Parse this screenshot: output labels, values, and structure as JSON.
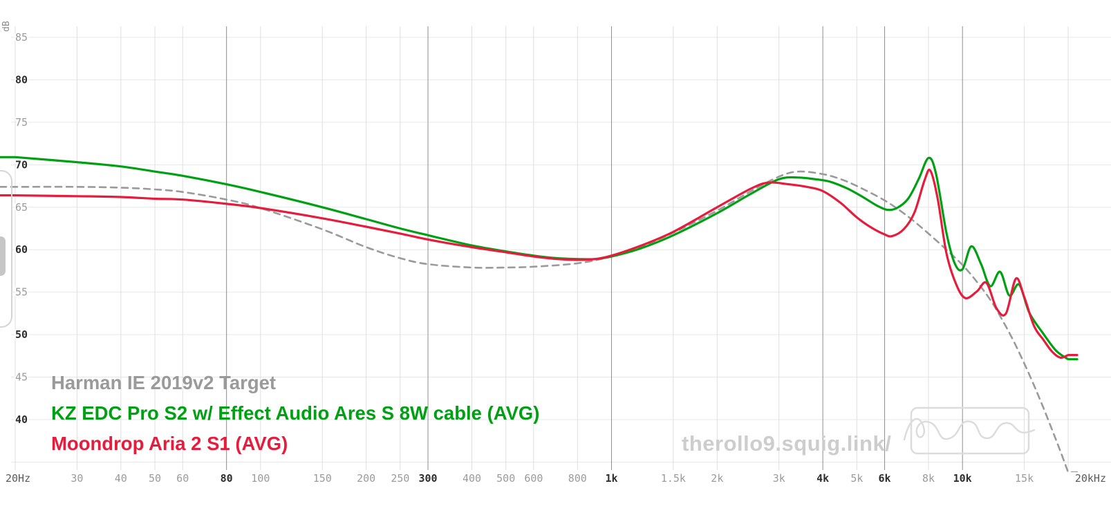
{
  "watermark": {
    "text": "therollo9.squig.link/",
    "color": "#cdcdcd"
  },
  "chart_data": {
    "type": "line",
    "title": "",
    "xlabel": "",
    "ylabel": "dB",
    "x_scale": "log",
    "xlim": [
      20,
      20000
    ],
    "ylim": [
      40,
      85
    ],
    "grid": true,
    "legend_position": "bottom-left",
    "colors": {
      "grid_h": "#e7e7e7",
      "grid_minor": "#dfdfdf",
      "grid_major": "#8e8e8e"
    },
    "extra_h_gridlines": [
      35
    ],
    "x_ticks": [
      {
        "f": 20,
        "label": "20Hz",
        "major": false,
        "dark": true
      },
      {
        "f": 30,
        "label": "30",
        "major": false
      },
      {
        "f": 40,
        "label": "40",
        "major": false
      },
      {
        "f": 50,
        "label": "50",
        "major": false
      },
      {
        "f": 60,
        "label": "60",
        "major": false
      },
      {
        "f": 80,
        "label": "80",
        "major": true
      },
      {
        "f": 100,
        "label": "100",
        "major": false
      },
      {
        "f": 150,
        "label": "150",
        "major": false
      },
      {
        "f": 200,
        "label": "200",
        "major": false
      },
      {
        "f": 250,
        "label": "250",
        "major": false
      },
      {
        "f": 300,
        "label": "300",
        "major": true
      },
      {
        "f": 400,
        "label": "400",
        "major": false
      },
      {
        "f": 500,
        "label": "500",
        "major": false
      },
      {
        "f": 600,
        "label": "600",
        "major": false
      },
      {
        "f": 800,
        "label": "800",
        "major": false
      },
      {
        "f": 1000,
        "label": "1k",
        "major": true
      },
      {
        "f": 1500,
        "label": "1.5k",
        "major": false
      },
      {
        "f": 2000,
        "label": "2k",
        "major": false
      },
      {
        "f": 3000,
        "label": "3k",
        "major": false
      },
      {
        "f": 4000,
        "label": "4k",
        "major": true
      },
      {
        "f": 5000,
        "label": "5k",
        "major": false
      },
      {
        "f": 6000,
        "label": "6k",
        "major": true
      },
      {
        "f": 8000,
        "label": "8k",
        "major": false
      },
      {
        "f": 10000,
        "label": "10k",
        "major": true
      },
      {
        "f": 15000,
        "label": "15k",
        "major": false
      },
      {
        "f": 20000,
        "label": "20kHz",
        "major": false,
        "dark": true
      }
    ],
    "y_ticks": [
      {
        "value": 85,
        "label": "85",
        "major": false
      },
      {
        "value": 80,
        "label": "80",
        "major": true
      },
      {
        "value": 75,
        "label": "75",
        "major": false
      },
      {
        "value": 70,
        "label": "70",
        "major": true
      },
      {
        "value": 65,
        "label": "65",
        "major": false
      },
      {
        "value": 60,
        "label": "60",
        "major": true
      },
      {
        "value": 55,
        "label": "55",
        "major": false
      },
      {
        "value": 50,
        "label": "50",
        "major": true
      },
      {
        "value": 45,
        "label": "45",
        "major": false
      },
      {
        "value": 40,
        "label": "40",
        "major": true
      }
    ],
    "series": [
      {
        "id": "harman-target",
        "name": "Harman IE 2019v2 Target",
        "color": "#9a9a9a",
        "style": "dashed",
        "width": 2.6,
        "points": [
          [
            20,
            67.4
          ],
          [
            30,
            67.4
          ],
          [
            40,
            67.3
          ],
          [
            50,
            67.1
          ],
          [
            60,
            66.8
          ],
          [
            80,
            65.9
          ],
          [
            100,
            64.9
          ],
          [
            150,
            62.4
          ],
          [
            200,
            60.3
          ],
          [
            250,
            59.0
          ],
          [
            300,
            58.3
          ],
          [
            400,
            57.9
          ],
          [
            500,
            57.9
          ],
          [
            600,
            58.0
          ],
          [
            800,
            58.4
          ],
          [
            1000,
            59.2
          ],
          [
            1200,
            60.3
          ],
          [
            1500,
            62.0
          ],
          [
            2000,
            64.6
          ],
          [
            2500,
            66.9
          ],
          [
            3000,
            68.6
          ],
          [
            3400,
            69.2
          ],
          [
            4000,
            68.9
          ],
          [
            4500,
            68.3
          ],
          [
            5000,
            67.5
          ],
          [
            6000,
            65.8
          ],
          [
            7000,
            63.9
          ],
          [
            8000,
            61.9
          ],
          [
            9000,
            60.0
          ],
          [
            10000,
            58.2
          ],
          [
            11000,
            56.2
          ],
          [
            12000,
            54.1
          ],
          [
            13000,
            51.7
          ],
          [
            14000,
            49.2
          ],
          [
            15000,
            46.6
          ],
          [
            16000,
            44.0
          ],
          [
            17000,
            41.4
          ],
          [
            18000,
            38.8
          ],
          [
            19000,
            36.3
          ],
          [
            20000,
            33.8
          ]
        ]
      },
      {
        "id": "kz-edc-pro-s2",
        "name": "KZ EDC Pro S2 w/ Effect Audio Ares S 8W cable (AVG)",
        "color": "#00a013",
        "style": "solid",
        "width": 3.2,
        "points": [
          [
            20,
            70.9
          ],
          [
            30,
            70.3
          ],
          [
            40,
            69.8
          ],
          [
            50,
            69.2
          ],
          [
            60,
            68.7
          ],
          [
            80,
            67.7
          ],
          [
            100,
            66.8
          ],
          [
            150,
            65.0
          ],
          [
            200,
            63.6
          ],
          [
            250,
            62.5
          ],
          [
            300,
            61.7
          ],
          [
            400,
            60.5
          ],
          [
            500,
            59.8
          ],
          [
            600,
            59.3
          ],
          [
            700,
            59.0
          ],
          [
            800,
            58.9
          ],
          [
            900,
            58.9
          ],
          [
            1000,
            59.2
          ],
          [
            1200,
            60.1
          ],
          [
            1500,
            61.7
          ],
          [
            2000,
            64.3
          ],
          [
            2500,
            66.6
          ],
          [
            3000,
            68.3
          ],
          [
            3400,
            68.5
          ],
          [
            3800,
            68.3
          ],
          [
            4200,
            68.0
          ],
          [
            4700,
            67.2
          ],
          [
            5200,
            66.2
          ],
          [
            5700,
            65.2
          ],
          [
            6100,
            64.7
          ],
          [
            6500,
            64.9
          ],
          [
            7000,
            66.0
          ],
          [
            7500,
            68.3
          ],
          [
            8000,
            70.8
          ],
          [
            8400,
            69.0
          ],
          [
            9000,
            62.0
          ],
          [
            9500,
            58.4
          ],
          [
            10000,
            57.7
          ],
          [
            10600,
            60.4
          ],
          [
            11300,
            58.3
          ],
          [
            12000,
            55.7
          ],
          [
            12800,
            57.4
          ],
          [
            13600,
            54.6
          ],
          [
            14500,
            55.9
          ],
          [
            15500,
            52.6
          ],
          [
            17000,
            50.1
          ],
          [
            18500,
            48.1
          ],
          [
            20000,
            47.1
          ]
        ]
      },
      {
        "id": "moondrop-aria-2",
        "name": "Moondrop Aria 2 S1 (AVG)",
        "color": "#e61c3c",
        "style": "solid",
        "width": 3.2,
        "points": [
          [
            20,
            66.4
          ],
          [
            30,
            66.3
          ],
          [
            40,
            66.2
          ],
          [
            50,
            66.0
          ],
          [
            60,
            65.9
          ],
          [
            80,
            65.4
          ],
          [
            100,
            64.9
          ],
          [
            150,
            63.7
          ],
          [
            200,
            62.7
          ],
          [
            250,
            61.9
          ],
          [
            300,
            61.2
          ],
          [
            400,
            60.3
          ],
          [
            500,
            59.7
          ],
          [
            600,
            59.2
          ],
          [
            700,
            58.9
          ],
          [
            800,
            58.8
          ],
          [
            900,
            58.9
          ],
          [
            1000,
            59.3
          ],
          [
            1200,
            60.4
          ],
          [
            1500,
            62.1
          ],
          [
            2000,
            65.0
          ],
          [
            2500,
            67.2
          ],
          [
            2800,
            67.9
          ],
          [
            3200,
            67.7
          ],
          [
            3600,
            67.4
          ],
          [
            4000,
            66.9
          ],
          [
            4500,
            65.5
          ],
          [
            5000,
            63.8
          ],
          [
            5500,
            62.6
          ],
          [
            6000,
            61.8
          ],
          [
            6300,
            61.6
          ],
          [
            6800,
            62.4
          ],
          [
            7300,
            64.4
          ],
          [
            7800,
            68.2
          ],
          [
            8100,
            69.3
          ],
          [
            8500,
            66.0
          ],
          [
            9000,
            59.6
          ],
          [
            9600,
            55.9
          ],
          [
            10200,
            54.3
          ],
          [
            11000,
            55.1
          ],
          [
            11700,
            56.1
          ],
          [
            12500,
            53.1
          ],
          [
            13300,
            52.5
          ],
          [
            14200,
            56.6
          ],
          [
            15000,
            54.4
          ],
          [
            16000,
            51.0
          ],
          [
            17000,
            49.4
          ],
          [
            18000,
            48.0
          ],
          [
            19000,
            47.3
          ],
          [
            20000,
            47.6
          ]
        ]
      }
    ]
  }
}
